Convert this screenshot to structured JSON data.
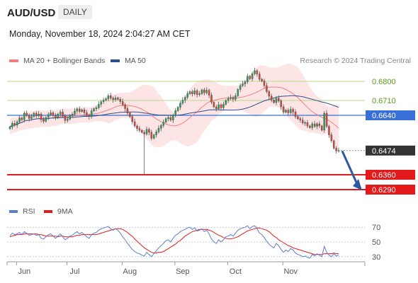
{
  "header": {
    "symbol": "AUD/USD",
    "period": "DAILY"
  },
  "timestamp": "Monday, November 18, 2024 2:04:27 AM CET",
  "legend": {
    "bollinger": {
      "label": "MA 20 + Bollinger Bands",
      "color": "#f08080"
    },
    "ma50": {
      "label": "MA 50",
      "color": "#2b4f8c"
    }
  },
  "research": "Research © 2024 Trading Central",
  "rsi_legend": {
    "rsi": {
      "label": "RSI",
      "color": "#5b7fd0"
    },
    "ma9": {
      "label": "9MA",
      "color": "#e31a1c"
    }
  },
  "chart_data": [
    {
      "type": "candlestick",
      "ylim": [
        0.625,
        0.685
      ],
      "x_ticks": [
        "Jun",
        "Jul",
        "Aug",
        "Sep",
        "Oct",
        "Nov"
      ],
      "price_levels": [
        {
          "label": "0.6800",
          "value": 0.68,
          "style": "green-line"
        },
        {
          "label": "0.6710",
          "value": 0.671,
          "style": "green-line"
        },
        {
          "label": "0.6640",
          "value": 0.664,
          "style": "blue-line"
        },
        {
          "label": "0.6474",
          "value": 0.6474,
          "style": "current-price"
        },
        {
          "label": "0.6360",
          "value": 0.636,
          "style": "red-line"
        },
        {
          "label": "0.6290",
          "value": 0.629,
          "style": "red-line"
        }
      ],
      "up_color": "#26a65b",
      "down_color": "#e0453a",
      "band_color": "#fde2e2",
      "level_green_color": "#b5d98a",
      "level_red_color": "#e31a1c",
      "level_blue_color": "#3b6fd8",
      "closes": [
        0.6585,
        0.6602,
        0.6594,
        0.661,
        0.6628,
        0.6619,
        0.665,
        0.664,
        0.6625,
        0.6634,
        0.665,
        0.6638,
        0.6646,
        0.662,
        0.6612,
        0.663,
        0.6644,
        0.6652,
        0.6639,
        0.6628,
        0.6646,
        0.6655,
        0.6638,
        0.6616,
        0.6622,
        0.664,
        0.6646,
        0.666,
        0.667,
        0.6658,
        0.6666,
        0.6652,
        0.664,
        0.6634,
        0.6661,
        0.6671,
        0.6676,
        0.6692,
        0.6704,
        0.6712,
        0.6718,
        0.6732,
        0.6721,
        0.6714,
        0.6722,
        0.6716,
        0.6705,
        0.669,
        0.6672,
        0.6651,
        0.6634,
        0.661,
        0.659,
        0.6578,
        0.6569,
        0.656,
        0.6552,
        0.6574,
        0.656,
        0.6532,
        0.6548,
        0.6562,
        0.6579,
        0.6592,
        0.6608,
        0.6624,
        0.663,
        0.6618,
        0.664,
        0.6662,
        0.6678,
        0.6697,
        0.6712,
        0.6725,
        0.6742,
        0.6751,
        0.6741,
        0.6756,
        0.6738,
        0.6742,
        0.676,
        0.6746,
        0.6758,
        0.6735,
        0.6702,
        0.668,
        0.6671,
        0.669,
        0.6676,
        0.6692,
        0.671,
        0.6719,
        0.6724,
        0.6716,
        0.6732,
        0.6762,
        0.678,
        0.6788,
        0.6798,
        0.6824,
        0.6812,
        0.6836,
        0.685,
        0.6835,
        0.681,
        0.6802,
        0.678,
        0.6752,
        0.673,
        0.6712,
        0.67,
        0.672,
        0.6708,
        0.668,
        0.6655,
        0.6664,
        0.6652,
        0.6668,
        0.6656,
        0.6634,
        0.6624,
        0.6618,
        0.6604,
        0.6606,
        0.659,
        0.6582,
        0.66,
        0.6588,
        0.66,
        0.659,
        0.657,
        0.665,
        0.6588,
        0.6548,
        0.652,
        0.6485,
        0.6472,
        0.6474
      ]
    },
    {
      "type": "line",
      "title": "RSI",
      "ylim": [
        25,
        75
      ],
      "y_ticks": [
        70,
        50,
        30
      ],
      "series": [
        {
          "name": "RSI",
          "values": [
            58,
            62,
            60,
            61,
            63,
            60,
            64,
            62,
            59,
            60,
            61,
            59,
            60,
            55,
            54,
            57,
            60,
            61,
            58,
            55,
            58,
            61,
            57,
            53,
            55,
            58,
            59,
            62,
            64,
            61,
            63,
            60,
            57,
            55,
            60,
            62,
            63,
            66,
            68,
            69,
            70,
            71,
            68,
            66,
            68,
            66,
            62,
            57,
            53,
            48,
            44,
            40,
            37,
            35,
            34,
            32,
            31,
            36,
            33,
            30,
            34,
            38,
            42,
            45,
            48,
            52,
            53,
            50,
            55,
            59,
            61,
            64,
            66,
            67,
            69,
            70,
            67,
            69,
            65,
            66,
            68,
            64,
            66,
            61,
            54,
            50,
            48,
            53,
            50,
            53,
            57,
            58,
            60,
            58,
            62,
            66,
            68,
            69,
            70,
            72,
            68,
            71,
            72,
            68,
            62,
            60,
            56,
            51,
            47,
            44,
            42,
            48,
            45,
            40,
            36,
            39,
            37,
            41,
            39,
            35,
            33,
            32,
            30,
            31,
            29,
            28,
            33,
            31,
            34,
            32,
            30,
            44,
            36,
            32,
            30,
            34,
            31,
            32
          ]
        },
        {
          "name": "9MA",
          "values": [
            57,
            58,
            59,
            60,
            60,
            60,
            61,
            61,
            61,
            61,
            61,
            61,
            60,
            60,
            59,
            58,
            58,
            58,
            58,
            58,
            57,
            58,
            58,
            57,
            57,
            57,
            57,
            58,
            59,
            59,
            60,
            60,
            60,
            60,
            60,
            60,
            60,
            61,
            62,
            63,
            64,
            65,
            66,
            67,
            68,
            68,
            68,
            67,
            65,
            63,
            60,
            58,
            54,
            51,
            48,
            45,
            42,
            40,
            38,
            36,
            35,
            35,
            36,
            36,
            37,
            39,
            41,
            43,
            45,
            47,
            50,
            52,
            55,
            58,
            60,
            62,
            64,
            65,
            66,
            67,
            67,
            67,
            67,
            66,
            65,
            63,
            61,
            59,
            58,
            56,
            55,
            54,
            54,
            55,
            56,
            57,
            59,
            61,
            63,
            65,
            66,
            67,
            68,
            69,
            69,
            68,
            67,
            66,
            64,
            61,
            58,
            56,
            53,
            51,
            49,
            47,
            45,
            44,
            42,
            41,
            40,
            39,
            38,
            37,
            36,
            35,
            34,
            33,
            33,
            33,
            33,
            34,
            34,
            34,
            34,
            35,
            34,
            34
          ]
        }
      ]
    }
  ]
}
